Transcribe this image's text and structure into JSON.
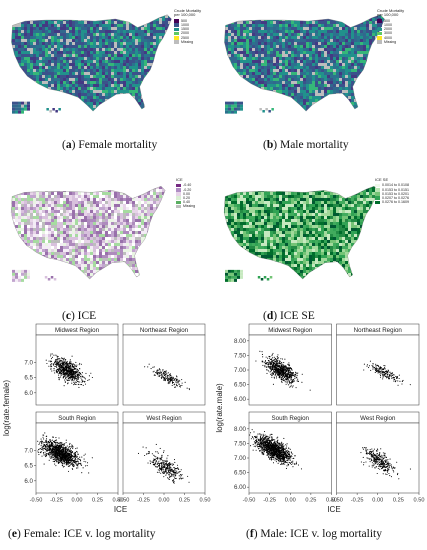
{
  "captions": {
    "a": {
      "letter": "a",
      "text": " Female mortality"
    },
    "b": {
      "letter": "b",
      "text": " Male mortality"
    },
    "c": {
      "letter": "c",
      "text": " ICE"
    },
    "d": {
      "letter": "d",
      "text": " ICE SE"
    },
    "e": {
      "letter": "e",
      "text": " Female: ICE v. log mortality"
    },
    "f": {
      "letter": "f",
      "text": " Male: ICE v. log mortality"
    }
  },
  "mortality_legend": {
    "title_line1": "Crude Mortality",
    "title_line2": "per 100,000",
    "items": [
      {
        "label": "500",
        "color": "#440154"
      },
      {
        "label": "1000",
        "color": "#3b528b"
      },
      {
        "label": "1500",
        "color": "#21918c"
      },
      {
        "label": "2000",
        "color": "#5ec962"
      },
      {
        "label": "2500",
        "color": "#fde725"
      },
      {
        "label": "Missing",
        "color": "#bdbdbd"
      }
    ]
  },
  "male_legend": {
    "title_line1": "Crude Mortality",
    "title_line2": "per 100,000",
    "items": [
      {
        "label": "500",
        "color": "#440154"
      },
      {
        "label": "1000",
        "color": "#3b528b"
      },
      {
        "label": "2000",
        "color": "#21918c"
      },
      {
        "label": "3000",
        "color": "#5ec962"
      },
      {
        "label": "4000",
        "color": "#fde725"
      },
      {
        "label": "Missing",
        "color": "#bdbdbd"
      }
    ]
  },
  "ice_legend": {
    "title": "ICE",
    "items": [
      {
        "label": "-0.40",
        "color": "#762a83"
      },
      {
        "label": "-0.20",
        "color": "#af8dc3"
      },
      {
        "label": "0.00",
        "color": "#e7d4e8"
      },
      {
        "label": "0.20",
        "color": "#d9f0d3"
      },
      {
        "label": "0.40",
        "color": "#5aae61"
      },
      {
        "label": "Missing",
        "color": "#bdbdbd"
      }
    ]
  },
  "ice_se_legend": {
    "title": "ICE SE",
    "items": [
      {
        "label": "0.0014 to 0.0108",
        "color": "#edf8e9"
      },
      {
        "label": "0.0153 to 0.0151",
        "color": "#bae4b3"
      },
      {
        "label": "0.0153 to 0.0201",
        "color": "#74c476"
      },
      {
        "label": "0.0207 to 0.0276",
        "color": "#31a354"
      },
      {
        "label": "0.0276 to 0.1609",
        "color": "#006d2c"
      }
    ]
  },
  "map_colors": {
    "female": [
      "#3b528b",
      "#31688e",
      "#21918c",
      "#2c728e",
      "#3b528b",
      "#21918c",
      "#35b779",
      "#443983",
      "#bdbdbd"
    ],
    "male": [
      "#3b528b",
      "#31688e",
      "#21918c",
      "#2c728e",
      "#21918c",
      "#35b779",
      "#443983",
      "#3b528b",
      "#bdbdbd"
    ],
    "ice": [
      "#ffffff",
      "#f4ecf6",
      "#e7d4e8",
      "#d8c1dd",
      "#c2a5cf",
      "#ae8bbd",
      "#9970ab",
      "#e9f5e3",
      "#a6dba0",
      "#bdbdbd"
    ],
    "ice_se": [
      "#006d2c",
      "#238b45",
      "#31a354",
      "#41ab5d",
      "#74c476",
      "#a1d99b",
      "#c7e9c0",
      "#005a32"
    ]
  },
  "chart_data": [
    {
      "type": "scatter",
      "panel": "female",
      "ylabel": "log(rate.female)",
      "xlabel": "ICE",
      "xlim": [
        -0.5,
        0.5
      ],
      "ylim": [
        5.6,
        7.9
      ],
      "x_ticks": [
        "-0.50",
        "-0.25",
        "0.00",
        "0.25",
        "0.50"
      ],
      "y_ticks": [
        "6.0",
        "6.5",
        "7.0"
      ],
      "facets": [
        {
          "title": "Midwest Region",
          "n": 700,
          "cx": -0.12,
          "sx": 0.09,
          "cy": 6.75,
          "sy": 0.22,
          "slope": -1.1
        },
        {
          "title": "Northeast Region",
          "n": 180,
          "cx": 0.05,
          "sx": 0.1,
          "cy": 6.5,
          "sy": 0.13,
          "slope": -1.3
        },
        {
          "title": "South Region",
          "n": 1150,
          "cx": -0.2,
          "sx": 0.11,
          "cy": 6.9,
          "sy": 0.22,
          "slope": -1.1
        },
        {
          "title": "West Region",
          "n": 320,
          "cx": 0.02,
          "sx": 0.1,
          "cy": 6.45,
          "sy": 0.22,
          "slope": -1.5
        }
      ]
    },
    {
      "type": "scatter",
      "panel": "male",
      "ylabel": "log(rate.male)",
      "xlabel": "ICE",
      "xlim": [
        -0.5,
        0.5
      ],
      "ylim": [
        5.8,
        8.2
      ],
      "x_ticks": [
        "-0.50",
        "-0.25",
        "0.00",
        "0.25",
        "0.50"
      ],
      "y_ticks": [
        "6.00",
        "6.50",
        "7.00",
        "7.50",
        "8.00"
      ],
      "facets": [
        {
          "title": "Midwest Region",
          "n": 700,
          "cx": -0.12,
          "sx": 0.09,
          "cy": 7.0,
          "sy": 0.22,
          "slope": -1.4
        },
        {
          "title": "Northeast Region",
          "n": 180,
          "cx": 0.08,
          "sx": 0.1,
          "cy": 6.9,
          "sy": 0.12,
          "slope": -1.2
        },
        {
          "title": "South Region",
          "n": 1150,
          "cx": -0.2,
          "sx": 0.11,
          "cy": 7.3,
          "sy": 0.22,
          "slope": -1.4
        },
        {
          "title": "West Region",
          "n": 320,
          "cx": 0.02,
          "sx": 0.1,
          "cy": 6.9,
          "sy": 0.22,
          "slope": -1.6
        }
      ]
    }
  ]
}
